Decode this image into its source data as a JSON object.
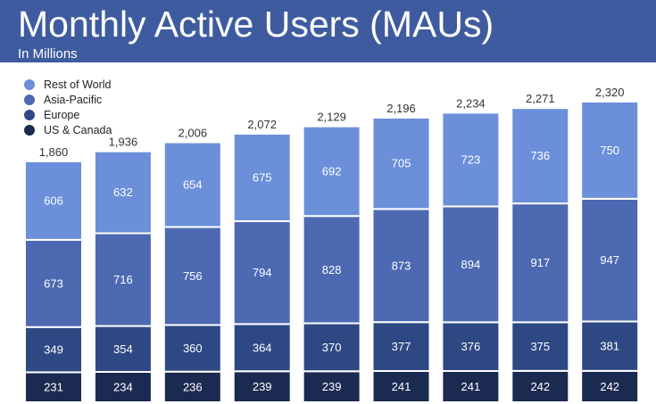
{
  "chart_data": {
    "type": "stacked-bar",
    "title": "Monthly Active Users (MAUs)",
    "subtitle": "In Millions",
    "legend_position": "top-left",
    "grid": false,
    "totals": [
      "1,860",
      "1,936",
      "2,006",
      "2,072",
      "2,129",
      "2,196",
      "2,234",
      "2,271",
      "2,320"
    ],
    "total_values": [
      1860,
      1936,
      2006,
      2072,
      2129,
      2196,
      2234,
      2271,
      2320
    ],
    "series": [
      {
        "name": "US & Canada",
        "color": "#1b2a50",
        "values": [
          231,
          234,
          236,
          239,
          239,
          241,
          241,
          242,
          242
        ]
      },
      {
        "name": "Europe",
        "color": "#2e4884",
        "values": [
          349,
          354,
          360,
          364,
          370,
          377,
          376,
          375,
          381
        ]
      },
      {
        "name": "Asia-Pacific",
        "color": "#4d69b2",
        "values": [
          673,
          716,
          756,
          794,
          828,
          873,
          894,
          917,
          947
        ]
      },
      {
        "name": "Rest of World",
        "color": "#6b8fd9",
        "values": [
          606,
          632,
          654,
          675,
          692,
          705,
          723,
          736,
          750
        ]
      }
    ]
  }
}
